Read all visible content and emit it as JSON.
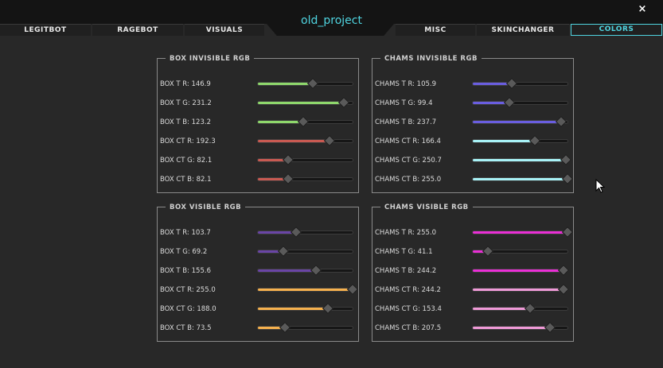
{
  "window": {
    "title": "old_project",
    "close_label": "×"
  },
  "tabs": [
    {
      "label": "LEGITBOT",
      "active": false
    },
    {
      "label": "RAGEBOT",
      "active": false
    },
    {
      "label": "VISUALS",
      "active": false
    },
    {
      "label": "MISC",
      "active": false
    },
    {
      "label": "SKINCHANGER",
      "active": false
    },
    {
      "label": "COLORS",
      "active": true
    }
  ],
  "panels": [
    {
      "title": "BOX INVISIBLE RGB",
      "color": "#8fd86c",
      "sliders": [
        {
          "label": "BOX T R: 146.9",
          "value": 146.9
        },
        {
          "label": "BOX T G: 231.2",
          "value": 231.2
        },
        {
          "label": "BOX T B: 123.2",
          "value": 123.2
        },
        {
          "label": "BOX CT R: 192.3",
          "value": 192.3,
          "color": "#c95a52"
        },
        {
          "label": "BOX CT G: 82.1",
          "value": 82.1,
          "color": "#c95a52"
        },
        {
          "label": "BOX CT B: 82.1",
          "value": 82.1,
          "color": "#c95a52"
        }
      ]
    },
    {
      "title": "CHAMS INVISIBLE RGB",
      "color": "#6a5ee0",
      "sliders": [
        {
          "label": "CHAMS T R: 105.9",
          "value": 105.9
        },
        {
          "label": "CHAMS T G: 99.4",
          "value": 99.4
        },
        {
          "label": "CHAMS T B: 237.7",
          "value": 237.7
        },
        {
          "label": "CHAMS CT R: 166.4",
          "value": 166.4,
          "color": "#a8f2f6"
        },
        {
          "label": "CHAMS CT G: 250.7",
          "value": 250.7,
          "color": "#a8f2f6"
        },
        {
          "label": "CHAMS CT B: 255.0",
          "value": 255.0,
          "color": "#a8f2f6"
        }
      ]
    },
    {
      "title": "BOX VISIBLE RGB",
      "color": "#6a45a6",
      "sliders": [
        {
          "label": "BOX T R: 103.7",
          "value": 103.7
        },
        {
          "label": "BOX T G: 69.2",
          "value": 69.2
        },
        {
          "label": "BOX T B: 155.6",
          "value": 155.6
        },
        {
          "label": "BOX CT R: 255.0",
          "value": 255.0,
          "color": "#f6b14e"
        },
        {
          "label": "BOX CT G: 188.0",
          "value": 188.0,
          "color": "#f6b14e"
        },
        {
          "label": "BOX CT B: 73.5",
          "value": 73.5,
          "color": "#f6b14e"
        }
      ]
    },
    {
      "title": "CHAMS VISIBLE RGB",
      "color": "#ea2fd6",
      "sliders": [
        {
          "label": "CHAMS T R: 255.0",
          "value": 255.0
        },
        {
          "label": "CHAMS T G: 41.1",
          "value": 41.1
        },
        {
          "label": "CHAMS T B: 244.2",
          "value": 244.2
        },
        {
          "label": "CHAMS CT R: 244.2",
          "value": 244.2,
          "color": "#f09ad8"
        },
        {
          "label": "CHAMS CT G: 153.4",
          "value": 153.4,
          "color": "#f09ad8"
        },
        {
          "label": "CHAMS CT B: 207.5",
          "value": 207.5,
          "color": "#f09ad8"
        }
      ]
    }
  ],
  "accent_color": "#4fd4e0",
  "slider_max": 255
}
